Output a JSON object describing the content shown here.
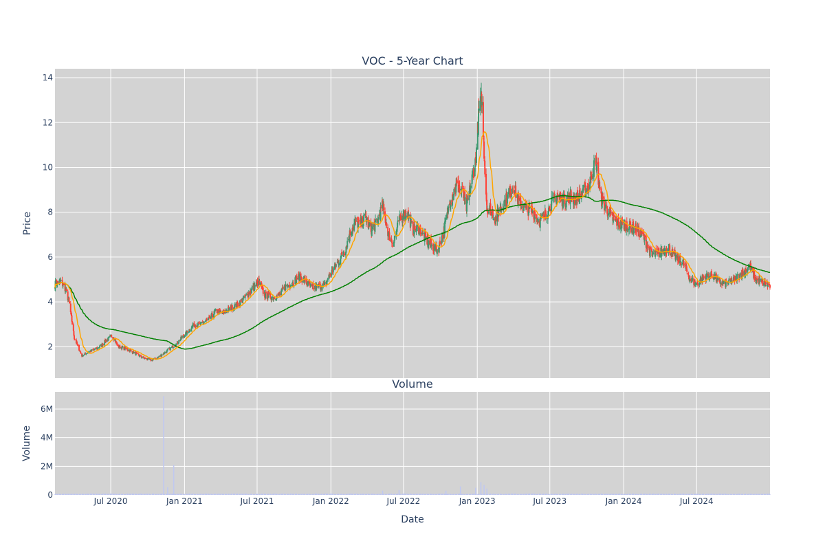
{
  "colors": {
    "panel_bg": "#d3d3d3",
    "grid": "#ffffff",
    "increasing": "#3d9970",
    "decreasing": "#ff4136",
    "ma_short": "#ffa500",
    "ma_long": "#008000",
    "volume_bar": "#c0c8f0",
    "text": "#2a3f5f"
  },
  "chart_data": [
    {
      "type": "candlestick",
      "title": "VOC - 5-Year Chart",
      "xlabel": "",
      "ylabel": "Price",
      "xlim": [
        "2020-02-13",
        "2024-12-31"
      ],
      "ylim": [
        0.6,
        14.4
      ],
      "y_ticks": [
        2,
        4,
        6,
        8,
        10,
        12,
        14
      ],
      "grid": true,
      "anchors": {
        "dates": [
          "2020-02-13",
          "2020-02-28",
          "2020-03-10",
          "2020-03-16",
          "2020-03-20",
          "2020-04-01",
          "2020-04-20",
          "2020-05-10",
          "2020-05-25",
          "2020-06-10",
          "2020-06-20",
          "2020-07-05",
          "2020-07-20",
          "2020-08-10",
          "2020-09-01",
          "2020-09-20",
          "2020-10-10",
          "2020-10-25",
          "2020-11-10",
          "2020-11-25",
          "2020-12-10",
          "2020-12-25",
          "2021-01-10",
          "2021-01-25",
          "2021-02-10",
          "2021-03-01",
          "2021-03-20",
          "2021-04-05",
          "2021-04-25",
          "2021-05-15",
          "2021-06-01",
          "2021-06-20",
          "2021-07-05",
          "2021-07-20",
          "2021-08-10",
          "2021-08-25",
          "2021-09-10",
          "2021-09-25",
          "2021-10-10",
          "2021-10-25",
          "2021-11-15",
          "2021-12-01",
          "2021-12-15",
          "2022-01-01",
          "2022-01-20",
          "2022-02-05",
          "2022-02-20",
          "2022-03-05",
          "2022-03-15",
          "2022-03-28",
          "2022-04-10",
          "2022-04-25",
          "2022-05-10",
          "2022-05-25",
          "2022-06-05",
          "2022-06-20",
          "2022-07-01",
          "2022-07-10",
          "2022-07-25",
          "2022-08-10",
          "2022-08-25",
          "2022-09-10",
          "2022-09-25",
          "2022-10-10",
          "2022-10-25",
          "2022-11-10",
          "2022-11-25",
          "2022-12-05",
          "2022-12-20",
          "2022-12-28",
          "2023-01-05",
          "2023-01-12",
          "2023-01-18",
          "2023-01-25",
          "2023-02-05",
          "2023-02-15",
          "2023-03-01",
          "2023-03-15",
          "2023-04-01",
          "2023-04-15",
          "2023-05-01",
          "2023-05-20",
          "2023-06-05",
          "2023-06-20",
          "2023-07-05",
          "2023-07-20",
          "2023-08-05",
          "2023-08-20",
          "2023-09-05",
          "2023-09-20",
          "2023-10-05",
          "2023-10-15",
          "2023-10-25",
          "2023-11-05",
          "2023-11-20",
          "2023-12-05",
          "2023-12-20",
          "2024-01-10",
          "2024-01-30",
          "2024-02-20",
          "2024-03-10",
          "2024-04-01",
          "2024-04-20",
          "2024-05-10",
          "2024-05-30",
          "2024-06-15",
          "2024-07-01",
          "2024-07-20",
          "2024-08-10",
          "2024-08-25",
          "2024-09-10",
          "2024-09-25",
          "2024-10-10",
          "2024-10-25",
          "2024-11-10",
          "2024-11-25",
          "2024-12-10",
          "2024-12-31"
        ],
        "close": [
          4.8,
          4.9,
          4.6,
          4.2,
          3.9,
          2.4,
          1.6,
          1.8,
          1.9,
          2.1,
          2.3,
          2.5,
          2.0,
          1.9,
          1.7,
          1.5,
          1.4,
          1.5,
          1.7,
          1.9,
          2.1,
          2.4,
          2.7,
          3.0,
          3.0,
          3.2,
          3.6,
          3.5,
          3.7,
          3.9,
          4.2,
          4.6,
          4.9,
          4.3,
          4.2,
          4.3,
          4.7,
          4.8,
          5.1,
          5.0,
          4.6,
          4.7,
          4.7,
          5.3,
          5.8,
          6.3,
          7.2,
          7.6,
          7.4,
          7.8,
          7.2,
          7.5,
          8.3,
          7.0,
          6.6,
          7.6,
          7.9,
          8.0,
          7.2,
          7.3,
          6.8,
          6.5,
          6.3,
          7.2,
          8.5,
          9.2,
          8.9,
          8.2,
          9.6,
          10.3,
          12.5,
          13.1,
          10.7,
          8.2,
          8.1,
          7.7,
          8.2,
          8.6,
          9.2,
          8.4,
          8.2,
          8.0,
          7.6,
          7.9,
          8.4,
          8.7,
          8.5,
          8.7,
          8.6,
          8.9,
          9.1,
          9.9,
          10.2,
          8.6,
          8.1,
          7.7,
          7.5,
          7.4,
          7.3,
          6.9,
          6.1,
          6.2,
          6.4,
          6.0,
          5.7,
          5.0,
          4.8,
          5.1,
          5.2,
          4.9,
          4.8,
          4.9,
          5.1,
          5.3,
          5.6,
          5.0,
          4.9,
          4.7
        ]
      },
      "moving_averages": [
        {
          "window": 20,
          "color": "#ffa500"
        },
        {
          "window": 200,
          "color": "#008000"
        }
      ],
      "x_ticks": [
        "Jul 2020",
        "Jan 2021",
        "Jul 2021",
        "Jan 2022",
        "Jul 2022",
        "Jan 2023",
        "Jul 2023",
        "Jan 2024",
        "Jul 2024"
      ],
      "x_tick_dates": [
        "2020-07-01",
        "2021-01-01",
        "2021-07-01",
        "2022-01-01",
        "2022-07-01",
        "2023-01-01",
        "2023-07-01",
        "2024-01-01",
        "2024-07-01"
      ]
    },
    {
      "type": "bar",
      "title": "Volume",
      "xlabel": "Date",
      "ylabel": "Volume",
      "ylim": [
        0,
        7200000
      ],
      "y_ticks": [
        0,
        2000000,
        4000000,
        6000000
      ],
      "y_tick_labels": [
        "0",
        "2M",
        "4M",
        "6M"
      ],
      "baseline_volume": 80000,
      "spikes": [
        {
          "date": "2020-11-10",
          "value": 6900000
        },
        {
          "date": "2020-11-20",
          "value": 550000
        },
        {
          "date": "2020-12-05",
          "value": 2100000
        },
        {
          "date": "2022-05-10",
          "value": 300000
        },
        {
          "date": "2022-06-20",
          "value": 350000
        },
        {
          "date": "2022-10-15",
          "value": 300000
        },
        {
          "date": "2022-11-20",
          "value": 600000
        },
        {
          "date": "2022-12-28",
          "value": 500000
        },
        {
          "date": "2023-01-10",
          "value": 900000
        },
        {
          "date": "2023-01-18",
          "value": 700000
        },
        {
          "date": "2023-01-25",
          "value": 450000
        }
      ],
      "grid": true
    }
  ]
}
